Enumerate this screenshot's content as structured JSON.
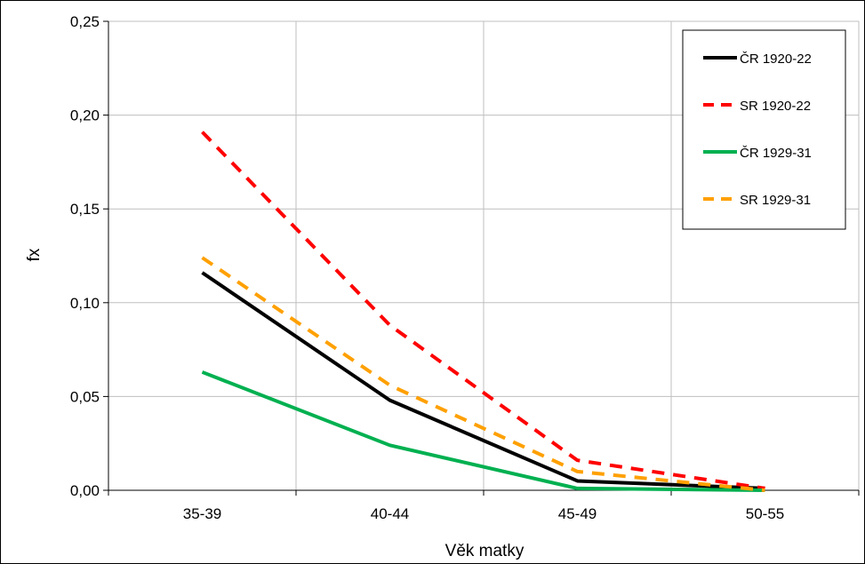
{
  "chart_data": {
    "type": "line",
    "categories": [
      "35-39",
      "40-44",
      "45-49",
      "50-55"
    ],
    "xlabel": "Věk matky",
    "ylabel": "fx",
    "ylim": [
      0,
      0.25
    ],
    "yticks": [
      "0,00",
      "0,05",
      "0,10",
      "0,15",
      "0,20",
      "0,25"
    ],
    "ytick_values": [
      0,
      0.05,
      0.1,
      0.15,
      0.2,
      0.25
    ],
    "grid": true,
    "legend_position": "top-right",
    "series": [
      {
        "name": "ČR 1920-22",
        "values": [
          0.116,
          0.048,
          0.005,
          0.001
        ],
        "color": "#000000",
        "dash": "solid"
      },
      {
        "name": "SR 1920-22",
        "values": [
          0.191,
          0.088,
          0.016,
          0.001
        ],
        "color": "#ff0000",
        "dash": "dashed"
      },
      {
        "name": "ČR 1929-31",
        "values": [
          0.063,
          0.024,
          0.001,
          0.0
        ],
        "color": "#00b050",
        "dash": "solid"
      },
      {
        "name": "SR 1929-31",
        "values": [
          0.124,
          0.056,
          0.01,
          0.0
        ],
        "color": "#ffa000",
        "dash": "dashed"
      }
    ]
  }
}
